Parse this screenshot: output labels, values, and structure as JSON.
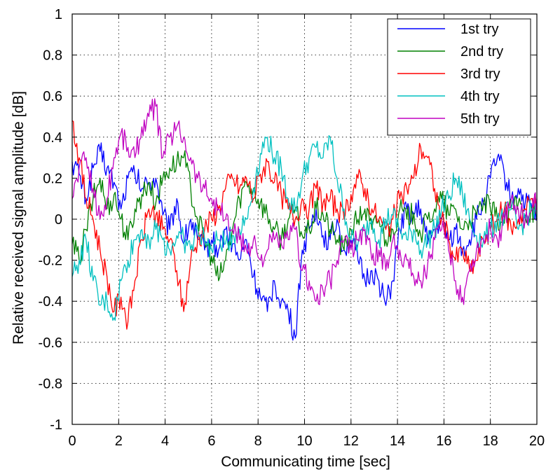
{
  "chart_data": {
    "type": "line",
    "title": "",
    "xlabel": "Communicating time [sec]",
    "ylabel": "Relative received signal amplitude [dB]",
    "xlim": [
      0,
      20
    ],
    "ylim": [
      -1,
      1
    ],
    "xticks": [
      "0",
      "2",
      "4",
      "6",
      "8",
      "10",
      "12",
      "14",
      "16",
      "18",
      "20"
    ],
    "yticks": [
      "1",
      "0.8",
      "0.6",
      "0.4",
      "0.2",
      "0",
      "-0.2",
      "-0.4",
      "-0.6",
      "-0.8",
      "-1"
    ],
    "grid": true,
    "legend_position": "top-right",
    "series": [
      {
        "name": "1st try",
        "color": "#0000ff",
        "x": [
          0,
          0.3,
          0.6,
          0.9,
          1.2,
          1.5,
          1.8,
          2.1,
          2.4,
          2.7,
          3.0,
          3.3,
          3.6,
          3.9,
          4.2,
          4.5,
          4.8,
          5.1,
          5.4,
          5.7,
          6.0,
          6.3,
          6.6,
          6.9,
          7.2,
          7.5,
          7.8,
          8.1,
          8.4,
          8.7,
          9.0,
          9.3,
          9.6,
          9.9,
          10.2,
          10.5,
          10.8,
          11.1,
          11.4,
          11.7,
          12.0,
          12.3,
          12.6,
          12.9,
          13.2,
          13.5,
          13.8,
          14.1,
          14.4,
          14.7,
          15.0,
          15.3,
          15.6,
          15.9,
          16.2,
          16.5,
          16.8,
          17.1,
          17.4,
          17.7,
          18.0,
          18.3,
          18.6,
          18.9,
          19.2,
          19.5,
          19.8,
          20.0
        ],
        "y": [
          0.28,
          0.22,
          0.1,
          0.25,
          0.33,
          0.25,
          0.18,
          0.05,
          0.2,
          0.22,
          0.15,
          0.18,
          0.2,
          0.02,
          -0.05,
          0.1,
          -0.12,
          0.0,
          -0.1,
          -0.15,
          -0.1,
          -0.15,
          -0.05,
          -0.12,
          -0.2,
          -0.1,
          -0.28,
          -0.38,
          -0.45,
          -0.3,
          -0.4,
          -0.45,
          -0.58,
          -0.15,
          -0.05,
          0.05,
          -0.08,
          -0.1,
          0.0,
          -0.15,
          -0.1,
          -0.2,
          -0.3,
          -0.25,
          -0.3,
          -0.42,
          -0.3,
          -0.05,
          0.05,
          0.02,
          0.05,
          -0.12,
          -0.05,
          0.0,
          -0.1,
          -0.05,
          -0.15,
          -0.1,
          0.0,
          0.08,
          0.2,
          0.3,
          0.22,
          0.1,
          0.15,
          0.08,
          0.05,
          0.0
        ]
      },
      {
        "name": "2nd try",
        "color": "#008000",
        "x": [
          0,
          0.3,
          0.6,
          0.9,
          1.2,
          1.5,
          1.8,
          2.1,
          2.4,
          2.7,
          3.0,
          3.3,
          3.6,
          3.9,
          4.2,
          4.5,
          4.8,
          5.1,
          5.4,
          5.7,
          6.0,
          6.3,
          6.6,
          6.9,
          7.2,
          7.5,
          7.8,
          8.1,
          8.4,
          8.7,
          9.0,
          9.3,
          9.6,
          9.9,
          10.2,
          10.5,
          10.8,
          11.1,
          11.4,
          11.7,
          12.0,
          12.3,
          12.6,
          12.9,
          13.2,
          13.5,
          13.8,
          14.1,
          14.4,
          14.7,
          15.0,
          15.3,
          15.6,
          15.9,
          16.2,
          16.5,
          16.8,
          17.1,
          17.4,
          17.7,
          18.0,
          18.3,
          18.6,
          18.9,
          19.2,
          19.5,
          19.8,
          20.0
        ],
        "y": [
          -0.12,
          -0.2,
          -0.05,
          0.1,
          0.2,
          0.05,
          0.12,
          0.0,
          -0.1,
          0.05,
          0.12,
          0.18,
          0.08,
          0.2,
          0.25,
          0.28,
          0.3,
          0.15,
          0.0,
          -0.1,
          -0.18,
          -0.3,
          -0.2,
          -0.05,
          0.1,
          0.18,
          0.15,
          0.08,
          0.02,
          -0.05,
          -0.1,
          0.0,
          0.05,
          -0.08,
          -0.05,
          0.05,
          0.02,
          -0.05,
          -0.1,
          -0.15,
          -0.05,
          0.0,
          0.05,
          -0.05,
          0.0,
          -0.1,
          -0.05,
          0.05,
          0.0,
          0.03,
          -0.08,
          0.0,
          0.05,
          0.1,
          0.02,
          0.05,
          -0.05,
          0.0,
          0.02,
          0.08,
          0.05,
          0.0,
          -0.02,
          0.05,
          0.08,
          0.02,
          0.05,
          0.0
        ]
      },
      {
        "name": "3rd try",
        "color": "#ff0000",
        "x": [
          0,
          0.3,
          0.6,
          0.9,
          1.2,
          1.5,
          1.8,
          2.1,
          2.4,
          2.7,
          3.0,
          3.3,
          3.6,
          3.9,
          4.2,
          4.5,
          4.8,
          5.1,
          5.4,
          5.7,
          6.0,
          6.3,
          6.6,
          6.9,
          7.2,
          7.5,
          7.8,
          8.1,
          8.4,
          8.7,
          9.0,
          9.3,
          9.6,
          9.9,
          10.2,
          10.5,
          10.8,
          11.1,
          11.4,
          11.7,
          12.0,
          12.3,
          12.6,
          12.9,
          13.2,
          13.5,
          13.8,
          14.1,
          14.4,
          14.7,
          15.0,
          15.3,
          15.6,
          15.9,
          16.2,
          16.5,
          16.8,
          17.1,
          17.4,
          17.7,
          18.0,
          18.3,
          18.6,
          18.9,
          19.2,
          19.5,
          19.8,
          20.0
        ],
        "y": [
          0.48,
          0.3,
          0.1,
          0.0,
          -0.15,
          -0.28,
          -0.45,
          -0.38,
          -0.5,
          -0.3,
          -0.1,
          0.05,
          0.02,
          -0.05,
          -0.1,
          -0.25,
          -0.45,
          -0.2,
          -0.1,
          -0.05,
          0.0,
          0.05,
          0.15,
          0.2,
          0.15,
          0.2,
          0.1,
          0.22,
          0.28,
          0.18,
          0.12,
          0.05,
          0.0,
          0.1,
          0.05,
          0.15,
          0.08,
          0.1,
          0.05,
          0.0,
          0.12,
          0.2,
          0.15,
          0.05,
          0.0,
          -0.05,
          0.0,
          0.1,
          0.15,
          0.2,
          0.35,
          0.3,
          0.15,
          0.0,
          -0.1,
          -0.2,
          -0.15,
          -0.25,
          -0.2,
          -0.1,
          -0.05,
          0.0,
          0.05,
          -0.05,
          0.0,
          0.05,
          0.1,
          0.05
        ]
      },
      {
        "name": "4th try",
        "color": "#00c0c0",
        "x": [
          0,
          0.3,
          0.6,
          0.9,
          1.2,
          1.5,
          1.8,
          2.1,
          2.4,
          2.7,
          3.0,
          3.3,
          3.6,
          3.9,
          4.2,
          4.5,
          4.8,
          5.1,
          5.4,
          5.7,
          6.0,
          6.3,
          6.6,
          6.9,
          7.2,
          7.5,
          7.8,
          8.1,
          8.4,
          8.7,
          9.0,
          9.3,
          9.6,
          9.9,
          10.2,
          10.5,
          10.8,
          11.1,
          11.4,
          11.7,
          12.0,
          12.3,
          12.6,
          12.9,
          13.2,
          13.5,
          13.8,
          14.1,
          14.4,
          14.7,
          15.0,
          15.3,
          15.6,
          15.9,
          16.2,
          16.5,
          16.8,
          17.1,
          17.4,
          17.7,
          18.0,
          18.3,
          18.6,
          18.9,
          19.2,
          19.5,
          19.8,
          20.0
        ],
        "y": [
          -0.28,
          -0.2,
          -0.1,
          -0.3,
          -0.42,
          -0.4,
          -0.48,
          -0.3,
          -0.2,
          -0.1,
          -0.05,
          -0.1,
          -0.05,
          -0.1,
          -0.15,
          -0.08,
          -0.1,
          -0.15,
          -0.05,
          -0.1,
          -0.15,
          -0.1,
          -0.12,
          -0.08,
          -0.05,
          0.0,
          0.15,
          0.32,
          0.4,
          0.3,
          0.25,
          0.1,
          0.05,
          0.2,
          0.3,
          0.35,
          0.3,
          0.4,
          0.2,
          0.05,
          -0.1,
          -0.12,
          -0.05,
          0.0,
          -0.1,
          0.0,
          0.02,
          -0.05,
          -0.1,
          -0.05,
          -0.15,
          -0.1,
          -0.05,
          0.05,
          0.1,
          0.2,
          0.12,
          0.0,
          -0.08,
          -0.1,
          -0.05,
          0.0,
          0.02,
          0.05,
          -0.05,
          0.0,
          0.05,
          0.02
        ]
      },
      {
        "name": "5th try",
        "color": "#c000c0",
        "x": [
          0,
          0.3,
          0.6,
          0.9,
          1.2,
          1.5,
          1.8,
          2.1,
          2.4,
          2.7,
          3.0,
          3.3,
          3.6,
          3.9,
          4.2,
          4.5,
          4.8,
          5.1,
          5.4,
          5.7,
          6.0,
          6.3,
          6.6,
          6.9,
          7.2,
          7.5,
          7.8,
          8.1,
          8.4,
          8.7,
          9.0,
          9.3,
          9.6,
          9.9,
          10.2,
          10.5,
          10.8,
          11.1,
          11.4,
          11.7,
          12.0,
          12.3,
          12.6,
          12.9,
          13.2,
          13.5,
          13.8,
          14.1,
          14.4,
          14.7,
          15.0,
          15.3,
          15.6,
          15.9,
          16.2,
          16.5,
          16.8,
          17.1,
          17.4,
          17.7,
          18.0,
          18.3,
          18.6,
          18.9,
          19.2,
          19.5,
          19.8,
          20.0
        ],
        "y": [
          0.1,
          0.25,
          0.3,
          0.15,
          0.0,
          0.1,
          0.3,
          0.42,
          0.35,
          0.3,
          0.45,
          0.5,
          0.55,
          0.3,
          0.4,
          0.45,
          0.4,
          0.3,
          0.2,
          0.15,
          0.1,
          0.05,
          0.0,
          -0.05,
          -0.1,
          -0.15,
          -0.1,
          -0.2,
          -0.15,
          -0.1,
          -0.12,
          -0.1,
          -0.05,
          -0.25,
          -0.3,
          -0.4,
          -0.35,
          -0.3,
          -0.2,
          -0.1,
          -0.15,
          -0.1,
          -0.05,
          -0.2,
          -0.15,
          -0.25,
          -0.1,
          -0.15,
          -0.2,
          -0.28,
          -0.3,
          -0.22,
          -0.1,
          -0.05,
          -0.15,
          -0.3,
          -0.38,
          -0.25,
          -0.15,
          -0.1,
          -0.05,
          -0.1,
          0.0,
          0.1,
          0.05,
          0.0,
          0.05,
          0.1
        ]
      }
    ]
  }
}
